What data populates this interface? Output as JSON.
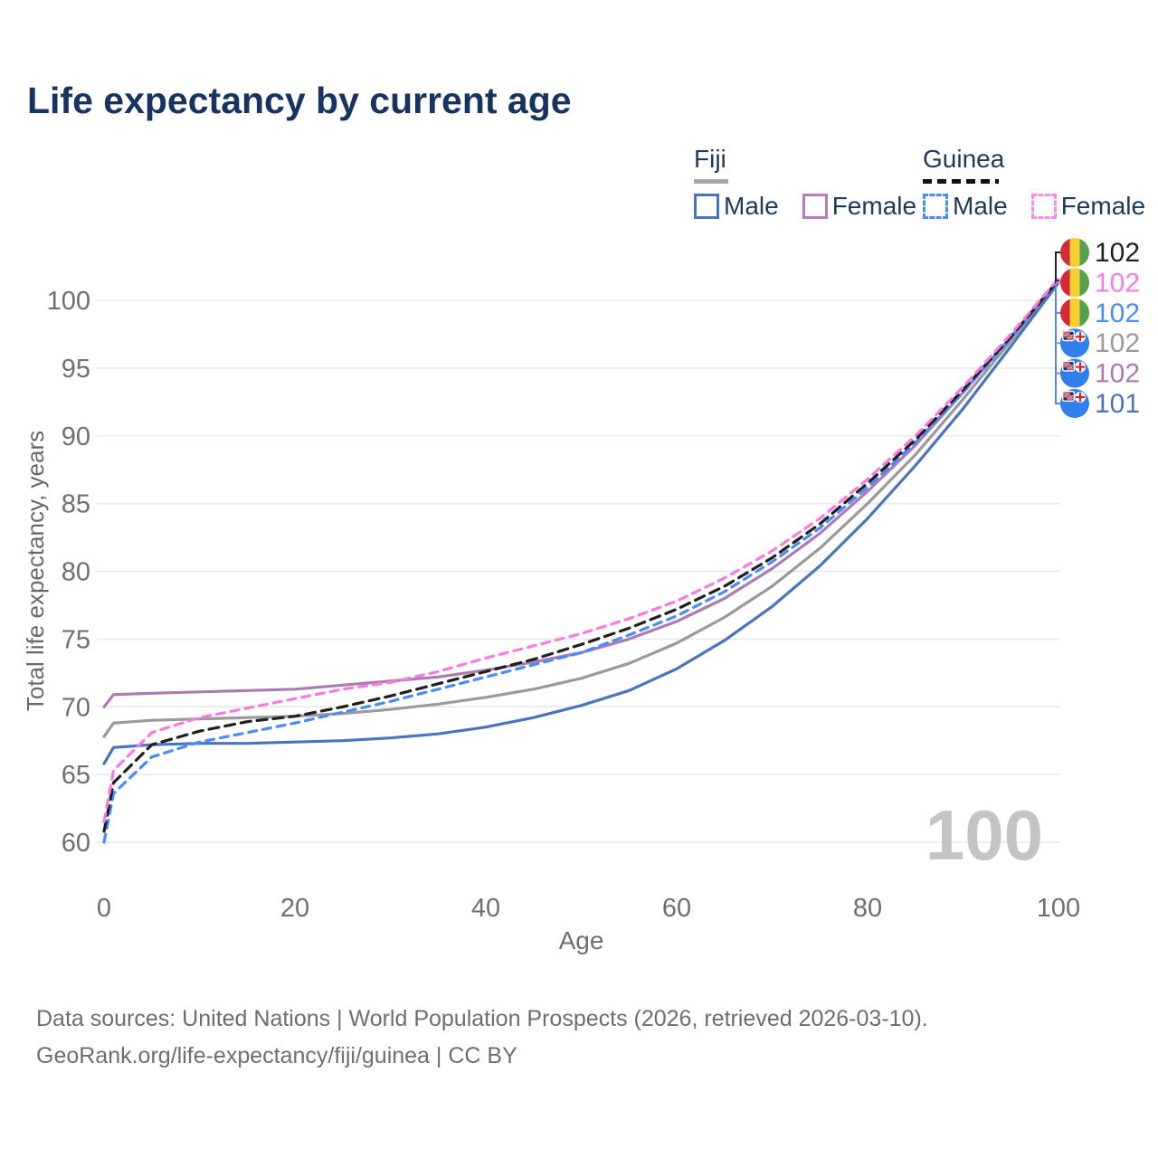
{
  "title": "Life expectancy by current age",
  "legend": {
    "groups": [
      {
        "name": "Fiji",
        "line_style": "solid",
        "items": [
          {
            "label": "Male",
            "color": "#4a74bc"
          },
          {
            "label": "Female",
            "color": "#b87cb8"
          }
        ]
      },
      {
        "name": "Guinea",
        "line_style": "dashed",
        "items": [
          {
            "label": "Male",
            "color": "#4a8cf7"
          },
          {
            "label": "Female",
            "color": "#fc8ae8"
          }
        ]
      }
    ]
  },
  "watermark": "100",
  "footer": {
    "line1": "Data sources: United Nations | World Population Prospects (2026, retrieved 2026-03-10).",
    "line2": "GeoRank.org/life-expectancy/fiji/guinea | CC BY"
  },
  "chart_data": {
    "type": "line",
    "title": "Life expectancy by current age",
    "xlabel": "Age",
    "ylabel": "Total life expectancy, years",
    "xlim": [
      0,
      100
    ],
    "ylim": [
      60,
      100
    ],
    "x_ticks": [
      0,
      20,
      40,
      60,
      80,
      100
    ],
    "y_ticks": [
      60,
      65,
      70,
      75,
      80,
      85,
      90,
      95,
      100
    ],
    "grid": "horizontal",
    "legend_position": "top-right",
    "x": [
      0,
      1,
      5,
      10,
      15,
      20,
      25,
      30,
      35,
      40,
      45,
      50,
      55,
      60,
      65,
      70,
      75,
      80,
      85,
      90,
      95,
      100
    ],
    "series": [
      {
        "id": "fiji_total",
        "name": "Fiji Total",
        "country": "fiji",
        "sex": "total",
        "color": "#9a9a9a",
        "dashed": false,
        "end_label": "102",
        "values": [
          67.8,
          68.8,
          69.0,
          69.1,
          69.2,
          69.3,
          69.5,
          69.8,
          70.2,
          70.7,
          71.3,
          72.1,
          73.2,
          74.7,
          76.6,
          78.9,
          81.7,
          85.0,
          88.6,
          92.7,
          97.0,
          101.4
        ]
      },
      {
        "id": "fiji_male",
        "name": "Fiji Male",
        "country": "fiji",
        "sex": "male",
        "color": "#4a74bc",
        "dashed": false,
        "end_label": "101",
        "values": [
          65.8,
          67.0,
          67.2,
          67.3,
          67.3,
          67.4,
          67.5,
          67.7,
          68.0,
          68.5,
          69.2,
          70.1,
          71.2,
          72.8,
          74.9,
          77.4,
          80.4,
          83.9,
          87.8,
          92.0,
          96.6,
          101.3
        ]
      },
      {
        "id": "fiji_female",
        "name": "Fiji Female",
        "country": "fiji",
        "sex": "female",
        "color": "#ab7cb0",
        "dashed": false,
        "end_label": "102",
        "values": [
          70.0,
          70.9,
          71.0,
          71.1,
          71.2,
          71.3,
          71.6,
          71.9,
          72.2,
          72.7,
          73.3,
          74.0,
          75.0,
          76.3,
          78.0,
          80.2,
          82.8,
          85.9,
          89.3,
          93.2,
          97.3,
          101.5
        ]
      },
      {
        "id": "guinea_male",
        "name": "Guinea Male",
        "country": "guinea",
        "sex": "male",
        "color": "#4a8cf7",
        "dashed": true,
        "end_label": "102",
        "values": [
          60.0,
          63.6,
          66.3,
          67.4,
          68.1,
          68.8,
          69.6,
          70.4,
          71.3,
          72.2,
          73.1,
          74.0,
          75.3,
          76.7,
          78.5,
          80.7,
          83.2,
          86.2,
          89.5,
          93.2,
          97.2,
          101.5
        ]
      },
      {
        "id": "guinea_total",
        "name": "Guinea Total",
        "country": "guinea",
        "sex": "total",
        "color": "#1f1f1f",
        "dashed": true,
        "end_label": "102",
        "values": [
          60.8,
          64.4,
          67.2,
          68.2,
          68.9,
          69.3,
          70.0,
          70.8,
          71.7,
          72.6,
          73.5,
          74.6,
          75.8,
          77.2,
          78.9,
          81.0,
          83.5,
          86.5,
          89.7,
          93.4,
          97.3,
          101.5
        ]
      },
      {
        "id": "guinea_female",
        "name": "Guinea Female",
        "country": "guinea",
        "sex": "female",
        "color": "#fb7ae2",
        "dashed": true,
        "end_label": "102",
        "values": [
          61.5,
          65.3,
          68.1,
          69.2,
          69.9,
          70.6,
          71.3,
          71.8,
          72.6,
          73.6,
          74.5,
          75.4,
          76.5,
          77.8,
          79.5,
          81.5,
          83.9,
          86.8,
          90.0,
          93.6,
          97.5,
          101.6
        ]
      }
    ],
    "end_label_order": [
      "guinea_total",
      "guinea_female",
      "guinea_male",
      "fiji_total",
      "fiji_female",
      "fiji_male"
    ],
    "flag_colors": {
      "guinea_stripes": [
        "#d32b36",
        "#f5d02e",
        "#57a14e"
      ],
      "fiji_base": "#2f80ed",
      "fiji_jack_navy": "#1a2a6c",
      "flag_red": "#d3212d"
    }
  }
}
